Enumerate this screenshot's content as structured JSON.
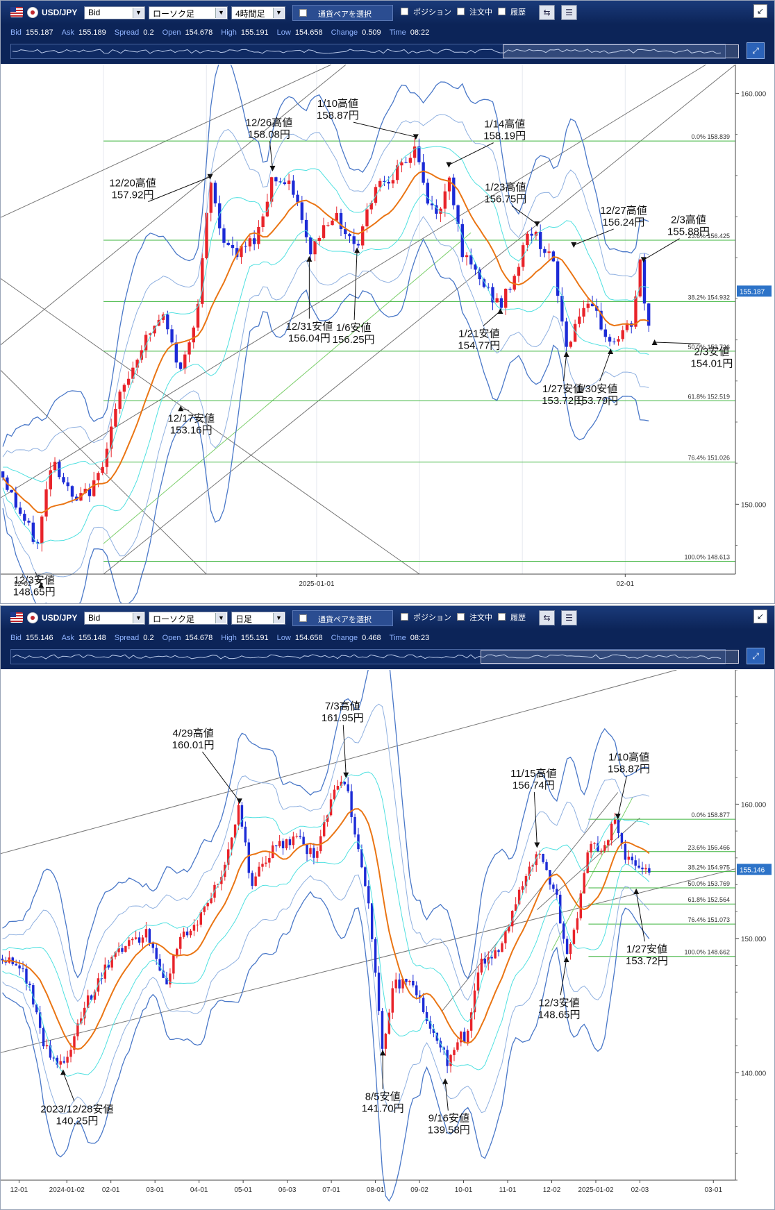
{
  "panels": [
    {
      "toolbar": {
        "pair": "USD/JPY",
        "price_type": "Bid",
        "chart_type": "ローソク足",
        "timeframe": "4時間足",
        "pair_button": "通貨ペアを選択",
        "position_label": "ポジション",
        "orders_label": "注文中",
        "history_label": "履歴"
      },
      "quotes": [
        {
          "k": "Bid",
          "v": "155.187"
        },
        {
          "k": "Ask",
          "v": "155.189"
        },
        {
          "k": "Spread",
          "v": "0.2"
        },
        {
          "k": "Open",
          "v": "154.678"
        },
        {
          "k": "High",
          "v": "155.191"
        },
        {
          "k": "Low",
          "v": "154.658"
        },
        {
          "k": "Change",
          "v": "0.509"
        },
        {
          "k": "Time",
          "v": "08:22"
        }
      ]
    },
    {
      "toolbar": {
        "pair": "USD/JPY",
        "price_type": "Bid",
        "chart_type": "ローソク足",
        "timeframe": "日足",
        "pair_button": "通貨ペアを選択",
        "position_label": "ポジション",
        "orders_label": "注文中",
        "history_label": "履歴"
      },
      "quotes": [
        {
          "k": "Bid",
          "v": "155.146"
        },
        {
          "k": "Ask",
          "v": "155.148"
        },
        {
          "k": "Spread",
          "v": "0.2"
        },
        {
          "k": "Open",
          "v": "154.678"
        },
        {
          "k": "High",
          "v": "155.191"
        },
        {
          "k": "Low",
          "v": "154.658"
        },
        {
          "k": "Change",
          "v": "0.468"
        },
        {
          "k": "Time",
          "v": "08:23"
        }
      ]
    }
  ],
  "chart_data": [
    {
      "type": "candlestick",
      "timeframe": "4時間足",
      "ylim": [
        148.3,
        160.7
      ],
      "y_ticks": [
        "160.000",
        "150.000"
      ],
      "x_ticks": [
        "12-02",
        "2025-01-01",
        "02-01"
      ],
      "current_price": "155.187",
      "fibonacci": [
        {
          "pct": "0.0%",
          "price": "158.839"
        },
        {
          "pct": "23.6%",
          "price": "156.425"
        },
        {
          "pct": "38.2%",
          "price": "154.932"
        },
        {
          "pct": "50.0%",
          "price": "153.726"
        },
        {
          "pct": "61.8%",
          "price": "152.519"
        },
        {
          "pct": "76.4%",
          "price": "151.026"
        },
        {
          "pct": "100.0%",
          "price": "148.613"
        }
      ],
      "annotations": [
        {
          "label": "12/3安値",
          "price": "148.65円"
        },
        {
          "label": "12/17安値",
          "price": "153.16円"
        },
        {
          "label": "12/20高値",
          "price": "157.92円"
        },
        {
          "label": "12/26高値",
          "price": "158.08円"
        },
        {
          "label": "12/31安値",
          "price": "156.04円"
        },
        {
          "label": "1/6安値",
          "price": "156.25円"
        },
        {
          "label": "1/10高値",
          "price": "158.87円"
        },
        {
          "label": "1/14高値",
          "price": "158.19円"
        },
        {
          "label": "1/21安値",
          "price": "154.77円"
        },
        {
          "label": "1/23高値",
          "price": "156.75円"
        },
        {
          "label": "12/27高値",
          "price": "156.24円"
        },
        {
          "label": "1/27安値",
          "price": "153.72円"
        },
        {
          "label": "1/30安値",
          "price": "153.79円"
        },
        {
          "label": "2/3高値",
          "price": "155.88円"
        },
        {
          "label": "2/3安値",
          "price": "154.01円"
        }
      ],
      "colors": {
        "up": "#e8232a",
        "down": "#1c2bd6",
        "ma": "#ea7514",
        "band_outer": "#4a78c8",
        "band_mid": "#8fb0e0",
        "band_inner": "#4fe0e0",
        "fib": "#3cb43c"
      }
    },
    {
      "type": "candlestick",
      "timeframe": "日足",
      "ylim": [
        132,
        170
      ],
      "y_ticks": [
        "160.000",
        "150.000",
        "140.000"
      ],
      "x_ticks": [
        "12-01",
        "2024-01-02",
        "02-01",
        "03-01",
        "04-01",
        "05-01",
        "06-03",
        "07-01",
        "08-01",
        "09-02",
        "10-01",
        "11-01",
        "12-02",
        "2025-01-02",
        "02-03",
        "03-01"
      ],
      "current_price": "155.146",
      "fibonacci": [
        {
          "pct": "0.0%",
          "price": "158.877"
        },
        {
          "pct": "23.6%",
          "price": "156.466"
        },
        {
          "pct": "38.2%",
          "price": "154.975"
        },
        {
          "pct": "50.0%",
          "price": "153.769"
        },
        {
          "pct": "61.8%",
          "price": "152.564"
        },
        {
          "pct": "76.4%",
          "price": "151.073"
        },
        {
          "pct": "100.0%",
          "price": "148.662"
        }
      ],
      "annotations": [
        {
          "label": "2023/12/28安値",
          "price": "140.25円"
        },
        {
          "label": "4/29高値",
          "price": "160.01円"
        },
        {
          "label": "7/3高値",
          "price": "161.95円"
        },
        {
          "label": "8/5安値",
          "price": "141.70円"
        },
        {
          "label": "9/16安値",
          "price": "139.58円"
        },
        {
          "label": "11/15高値",
          "price": "156.74円"
        },
        {
          "label": "12/3安値",
          "price": "148.65円"
        },
        {
          "label": "1/10高値",
          "price": "158.87円"
        },
        {
          "label": "1/27安値",
          "price": "153.72円"
        }
      ],
      "colors": {
        "up": "#e8232a",
        "down": "#1c2bd6",
        "ma": "#ea7514",
        "band_outer": "#4a78c8",
        "band_mid": "#8fb0e0",
        "band_inner": "#4fe0e0",
        "fib": "#3cb43c"
      }
    }
  ]
}
